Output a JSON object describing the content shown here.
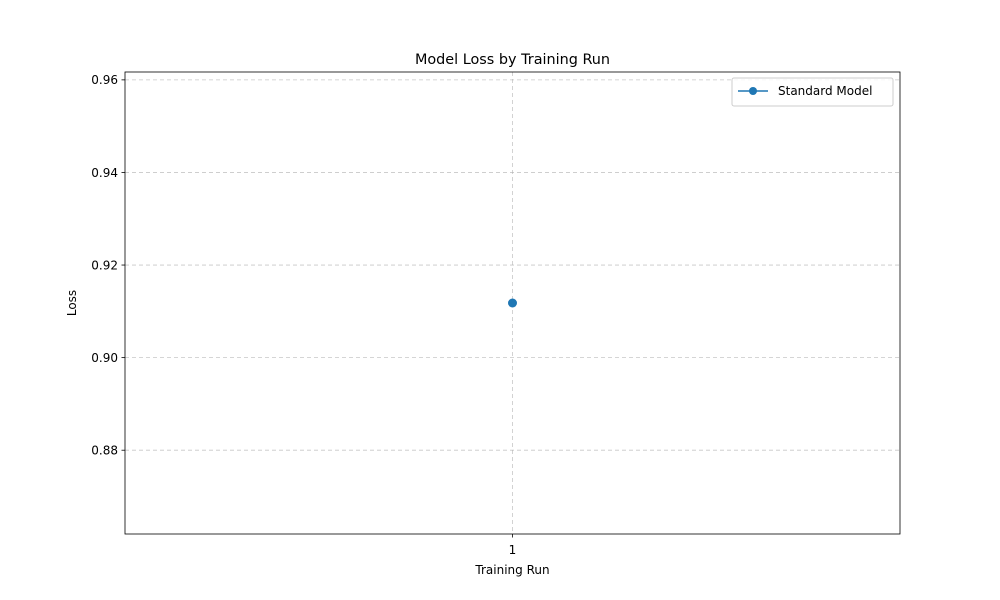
{
  "chart_data": {
    "type": "line",
    "title": "Model Loss by Training Run",
    "xlabel": "Training Run",
    "ylabel": "Loss",
    "x": [
      1
    ],
    "x_tick_labels": [
      "1"
    ],
    "ylim": [
      0.8619,
      0.9617
    ],
    "y_ticks": [
      0.88,
      0.9,
      0.92,
      0.94,
      0.96
    ],
    "y_tick_labels": [
      "0.88",
      "0.90",
      "0.92",
      "0.94",
      "0.96"
    ],
    "grid": true,
    "legend_position": "top-right",
    "series": [
      {
        "name": "Standard Model",
        "values": [
          0.9118
        ],
        "color": "#1f77b4",
        "marker": "circle"
      }
    ]
  }
}
